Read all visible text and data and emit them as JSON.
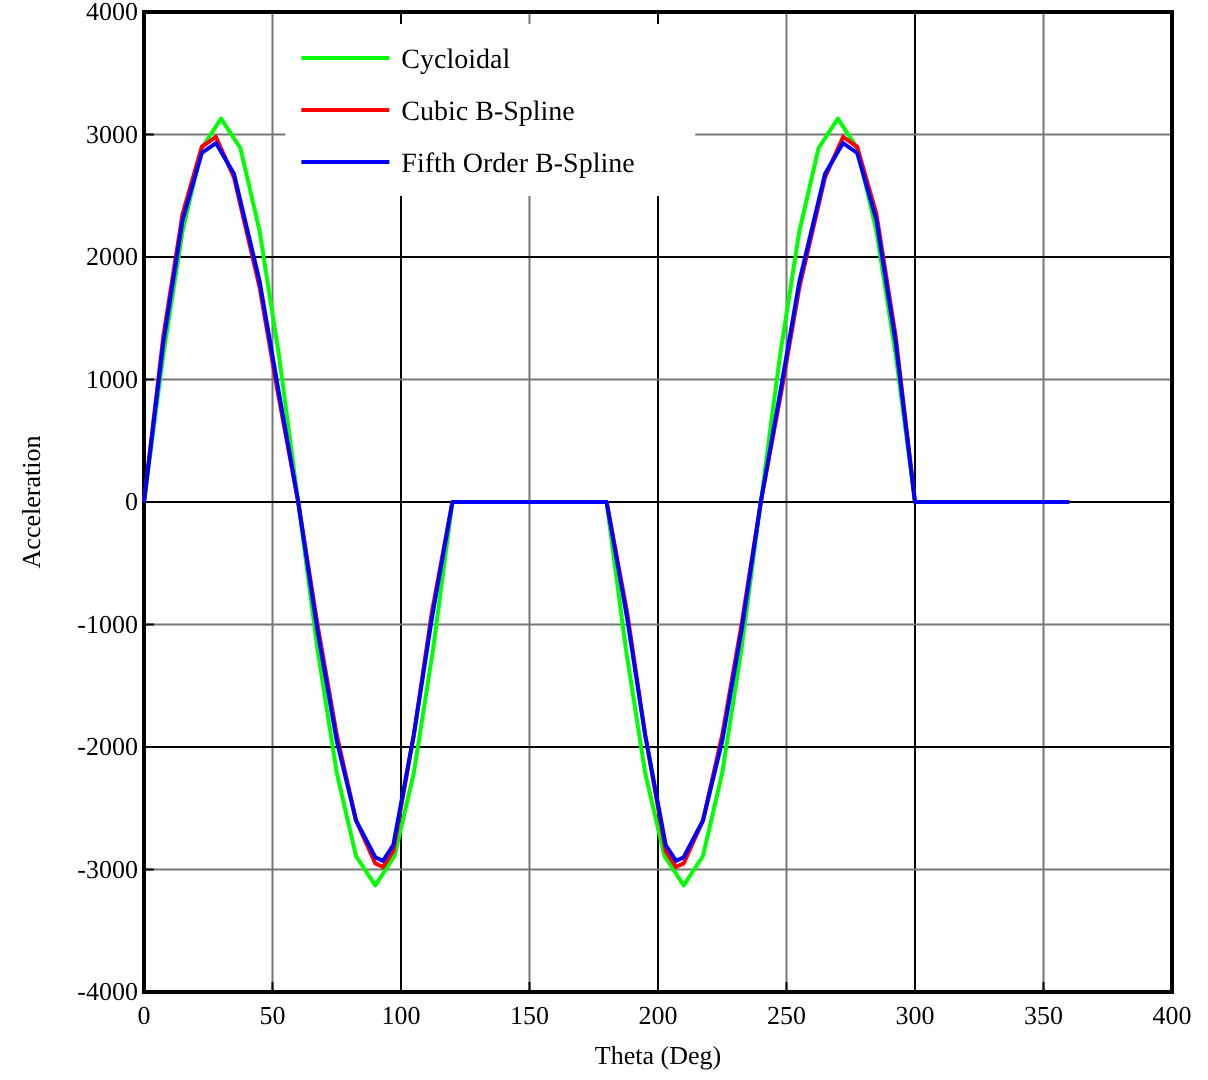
{
  "chart_data": {
    "type": "line",
    "xlabel": "Theta (Deg)",
    "ylabel": "Acceleration",
    "xlim": [
      0,
      400
    ],
    "xticks": [
      0,
      50,
      100,
      150,
      200,
      250,
      300,
      350,
      400
    ],
    "ylim": [
      -4000,
      4000
    ],
    "yticks": [
      -4000,
      -3000,
      -2000,
      -1000,
      0,
      1000,
      2000,
      3000,
      4000
    ],
    "grid": true,
    "legend": "top",
    "line_style": "solid",
    "marker": "none",
    "series": [
      {
        "name": "Cycloidal",
        "color": "#00ff00",
        "x": [
          0,
          7.5,
          15,
          22.5,
          30,
          37.5,
          45,
          52.5,
          60,
          67.5,
          75,
          82.5,
          90,
          97.5,
          105,
          112.5,
          120,
          180,
          187.5,
          195,
          202.5,
          210,
          217.5,
          225,
          232.5,
          240,
          247.5,
          255,
          262.5,
          270,
          277.5,
          285,
          292.5,
          300,
          360
        ],
        "values": [
          0,
          1200,
          2210,
          2890,
          3130,
          2890,
          2210,
          1200,
          0,
          -1200,
          -2210,
          -2890,
          -3130,
          -2890,
          -2210,
          -1200,
          0,
          0,
          -1200,
          -2210,
          -2890,
          -3130,
          -2890,
          -2210,
          -1200,
          0,
          1200,
          2210,
          2890,
          3130,
          2890,
          2210,
          1200,
          0,
          0
        ]
      },
      {
        "name": "Cubic B-Spline",
        "color": "#ff0000",
        "x": [
          0,
          7.5,
          15,
          22.5,
          28,
          35,
          45,
          52,
          60,
          67.5,
          75,
          82.5,
          90,
          93,
          97,
          105,
          112,
          120,
          180,
          188,
          195,
          203,
          207,
          210,
          217.5,
          225,
          232.5,
          240,
          248,
          255,
          265,
          272,
          277.5,
          285,
          292.5,
          300,
          360
        ],
        "values": [
          0,
          1350,
          2350,
          2900,
          2980,
          2650,
          1750,
          900,
          0,
          -1000,
          -1900,
          -2600,
          -2950,
          -2980,
          -2850,
          -1900,
          -900,
          0,
          0,
          -900,
          -1900,
          -2850,
          -2980,
          -2950,
          -2600,
          -1900,
          -1000,
          0,
          900,
          1750,
          2650,
          2980,
          2900,
          2350,
          1350,
          0,
          0
        ]
      },
      {
        "name": "Fifth Order B-Spline",
        "color": "#0000ff",
        "x": [
          0,
          7.5,
          15,
          22.5,
          28,
          35,
          45,
          52,
          60,
          67.5,
          75,
          82.5,
          90,
          93,
          97,
          105,
          112,
          120,
          180,
          188,
          195,
          203,
          207,
          210,
          217.5,
          225,
          232.5,
          240,
          248,
          255,
          265,
          272,
          277.5,
          285,
          292.5,
          300,
          360
        ],
        "values": [
          0,
          1300,
          2300,
          2850,
          2930,
          2680,
          1800,
          950,
          0,
          -1050,
          -1950,
          -2600,
          -2900,
          -2930,
          -2800,
          -1900,
          -950,
          0,
          0,
          -950,
          -1900,
          -2800,
          -2930,
          -2900,
          -2600,
          -1950,
          -1050,
          0,
          950,
          1800,
          2680,
          2930,
          2850,
          2300,
          1300,
          0,
          0
        ]
      }
    ]
  }
}
